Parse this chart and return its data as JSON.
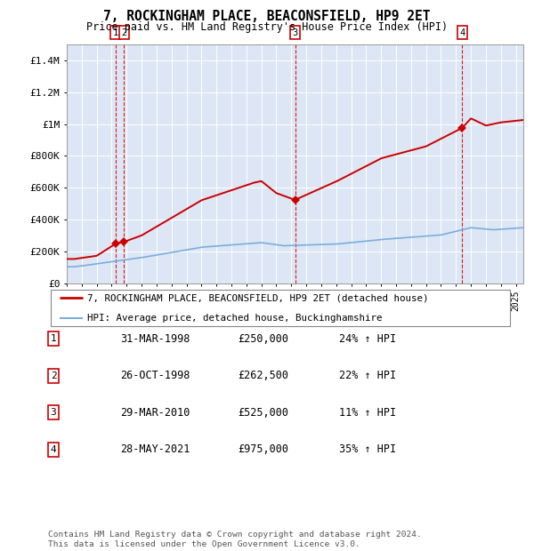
{
  "title": "7, ROCKINGHAM PLACE, BEACONSFIELD, HP9 2ET",
  "subtitle": "Price paid vs. HM Land Registry's House Price Index (HPI)",
  "background_color": "#ffffff",
  "chart_bg_color": "#dce6f5",
  "grid_color": "#ffffff",
  "ylim": [
    0,
    1500000
  ],
  "yticks": [
    0,
    200000,
    400000,
    600000,
    800000,
    1000000,
    1200000,
    1400000
  ],
  "ytick_labels": [
    "£0",
    "£200K",
    "£400K",
    "£600K",
    "£800K",
    "£1M",
    "£1.2M",
    "£1.4M"
  ],
  "red_line_color": "#cc0000",
  "blue_line_color": "#7aaedc",
  "sale_color": "#cc0000",
  "vline_color": "#dd0000",
  "transactions": [
    {
      "label": "1",
      "date_num": 1998.25,
      "price": 250000,
      "date_str": "31-MAR-1998"
    },
    {
      "label": "2",
      "date_num": 1998.83,
      "price": 262500,
      "date_str": "26-OCT-1998"
    },
    {
      "label": "3",
      "date_num": 2010.25,
      "price": 525000,
      "date_str": "29-MAR-2010"
    },
    {
      "label": "4",
      "date_num": 2021.42,
      "price": 975000,
      "date_str": "28-MAY-2021"
    }
  ],
  "legend_line1": "7, ROCKINGHAM PLACE, BEACONSFIELD, HP9 2ET (detached house)",
  "legend_line2": "HPI: Average price, detached house, Buckinghamshire",
  "footer": "Contains HM Land Registry data © Crown copyright and database right 2024.\nThis data is licensed under the Open Government Licence v3.0.",
  "table_rows": [
    [
      "1",
      "31-MAR-1998",
      "£250,000",
      "24% ↑ HPI"
    ],
    [
      "2",
      "26-OCT-1998",
      "£262,500",
      "22% ↑ HPI"
    ],
    [
      "3",
      "29-MAR-2010",
      "£525,000",
      "11% ↑ HPI"
    ],
    [
      "4",
      "28-MAY-2021",
      "£975,000",
      "35% ↑ HPI"
    ]
  ]
}
